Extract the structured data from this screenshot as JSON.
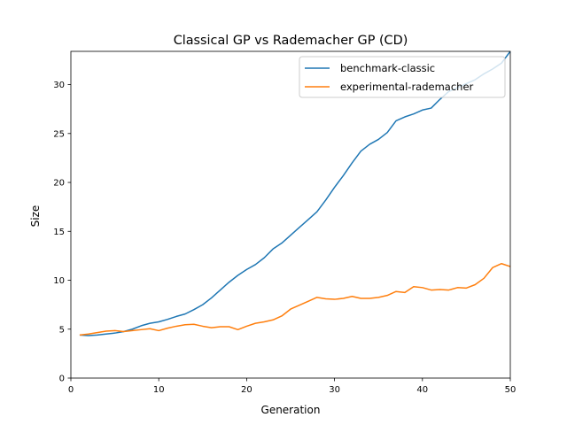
{
  "chart_data": {
    "type": "line",
    "title": "Classical GP vs Rademacher GP (CD)",
    "xlabel": "Generation",
    "ylabel": "Size",
    "xlim": [
      0,
      50
    ],
    "ylim": [
      0,
      33.4
    ],
    "xticks": [
      0,
      10,
      20,
      30,
      40,
      50
    ],
    "yticks": [
      0,
      5,
      10,
      15,
      20,
      25,
      30
    ],
    "grid": false,
    "legend_position": "top-right",
    "x": [
      1,
      2,
      3,
      4,
      5,
      6,
      7,
      8,
      9,
      10,
      11,
      12,
      13,
      14,
      15,
      16,
      17,
      18,
      19,
      20,
      21,
      22,
      23,
      24,
      25,
      26,
      27,
      28,
      29,
      30,
      31,
      32,
      33,
      34,
      35,
      36,
      37,
      38,
      39,
      40,
      41,
      42,
      43,
      44,
      45,
      46,
      47,
      48,
      49,
      50
    ],
    "series": [
      {
        "name": "benchmark-classic",
        "color": "#1f77b4",
        "values": [
          4.4,
          4.35,
          4.4,
          4.5,
          4.6,
          4.75,
          5.0,
          5.35,
          5.6,
          5.75,
          6.0,
          6.3,
          6.55,
          7.0,
          7.5,
          8.2,
          9.0,
          9.8,
          10.5,
          11.1,
          11.6,
          12.3,
          13.2,
          13.8,
          14.6,
          15.4,
          16.2,
          17.0,
          18.2,
          19.5,
          20.7,
          22.0,
          23.2,
          23.9,
          24.4,
          25.1,
          26.3,
          26.7,
          27.0,
          27.4,
          27.6,
          28.5,
          29.3,
          29.7,
          30.1,
          30.5,
          31.1,
          31.6,
          32.2,
          33.4
        ]
      },
      {
        "name": "experimental-rademacher",
        "color": "#ff7f0e",
        "values": [
          4.4,
          4.5,
          4.65,
          4.8,
          4.85,
          4.75,
          4.85,
          4.95,
          5.05,
          4.85,
          5.1,
          5.3,
          5.45,
          5.5,
          5.3,
          5.15,
          5.25,
          5.25,
          4.95,
          5.3,
          5.6,
          5.75,
          5.95,
          6.35,
          7.05,
          7.45,
          7.85,
          8.25,
          8.1,
          8.05,
          8.15,
          8.35,
          8.15,
          8.15,
          8.25,
          8.45,
          8.85,
          8.75,
          9.35,
          9.25,
          9.0,
          9.05,
          9.0,
          9.25,
          9.2,
          9.55,
          10.2,
          11.3,
          11.7,
          11.4
        ]
      }
    ]
  }
}
